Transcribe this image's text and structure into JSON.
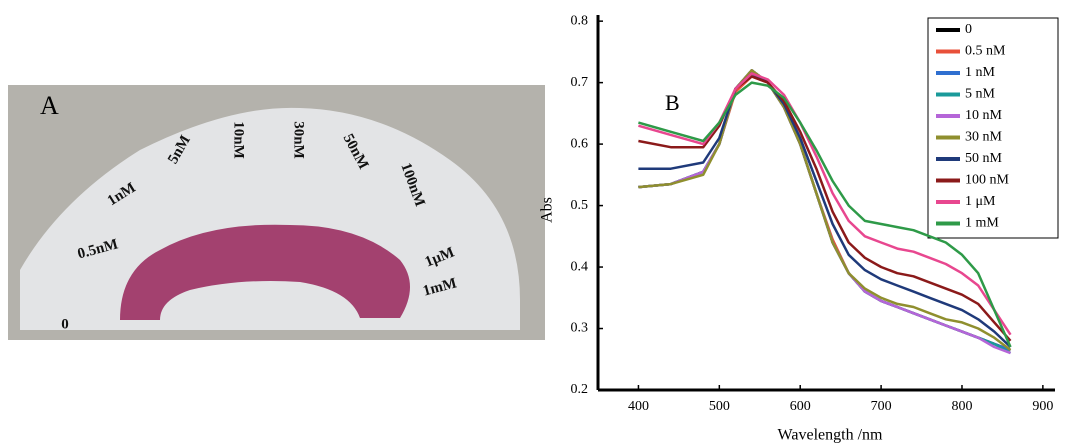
{
  "photo": {
    "label": "A",
    "tube_labels": [
      "0",
      "0.5nM",
      "1nM",
      "5nM",
      "10nM",
      "30nM",
      "50nM",
      "100nM",
      "1μM",
      "1mM"
    ]
  },
  "chart_data": {
    "type": "line",
    "panel_label": "B",
    "x_label": "Wavelength /nm",
    "y_label": "Abs",
    "x": [
      400,
      440,
      480,
      500,
      520,
      540,
      560,
      580,
      600,
      620,
      640,
      660,
      680,
      700,
      720,
      740,
      760,
      780,
      800,
      820,
      840,
      860
    ],
    "series": [
      {
        "name": "0",
        "color": "#000000",
        "values": [
          0.53,
          0.535,
          0.555,
          0.6,
          0.69,
          0.72,
          0.7,
          0.66,
          0.6,
          0.52,
          0.44,
          0.39,
          0.36,
          0.345,
          0.335,
          0.325,
          0.315,
          0.305,
          0.295,
          0.285,
          0.275,
          0.265
        ]
      },
      {
        "name": "0.5 nM",
        "color": "#e8503a",
        "values": [
          0.53,
          0.535,
          0.555,
          0.6,
          0.685,
          0.71,
          0.7,
          0.66,
          0.6,
          0.52,
          0.445,
          0.39,
          0.36,
          0.345,
          0.335,
          0.325,
          0.315,
          0.305,
          0.295,
          0.285,
          0.275,
          0.265
        ]
      },
      {
        "name": "1 nM",
        "color": "#2f6fd0",
        "values": [
          0.53,
          0.535,
          0.555,
          0.6,
          0.69,
          0.715,
          0.7,
          0.66,
          0.6,
          0.52,
          0.44,
          0.39,
          0.36,
          0.345,
          0.335,
          0.325,
          0.315,
          0.305,
          0.295,
          0.285,
          0.275,
          0.265
        ]
      },
      {
        "name": "5 nM",
        "color": "#1a9a9a",
        "values": [
          0.53,
          0.535,
          0.555,
          0.6,
          0.69,
          0.72,
          0.7,
          0.66,
          0.6,
          0.52,
          0.44,
          0.39,
          0.36,
          0.345,
          0.335,
          0.325,
          0.315,
          0.305,
          0.295,
          0.285,
          0.275,
          0.26
        ]
      },
      {
        "name": "10 nM",
        "color": "#b565d8",
        "values": [
          0.53,
          0.535,
          0.555,
          0.6,
          0.69,
          0.72,
          0.7,
          0.66,
          0.6,
          0.52,
          0.44,
          0.39,
          0.36,
          0.345,
          0.335,
          0.325,
          0.315,
          0.305,
          0.295,
          0.285,
          0.27,
          0.26
        ]
      },
      {
        "name": "30 nM",
        "color": "#8f8f2e",
        "values": [
          0.53,
          0.535,
          0.55,
          0.6,
          0.69,
          0.72,
          0.7,
          0.66,
          0.6,
          0.52,
          0.44,
          0.39,
          0.365,
          0.35,
          0.34,
          0.335,
          0.325,
          0.315,
          0.31,
          0.3,
          0.285,
          0.265
        ]
      },
      {
        "name": "50 nM",
        "color": "#1f3a7a",
        "values": [
          0.56,
          0.56,
          0.57,
          0.61,
          0.69,
          0.715,
          0.7,
          0.665,
          0.61,
          0.54,
          0.47,
          0.42,
          0.395,
          0.38,
          0.37,
          0.36,
          0.35,
          0.34,
          0.33,
          0.315,
          0.295,
          0.27
        ]
      },
      {
        "name": "100 nM",
        "color": "#8b1a1a",
        "values": [
          0.605,
          0.595,
          0.595,
          0.63,
          0.69,
          0.71,
          0.7,
          0.67,
          0.62,
          0.56,
          0.49,
          0.44,
          0.415,
          0.4,
          0.39,
          0.385,
          0.375,
          0.365,
          0.355,
          0.34,
          0.31,
          0.28
        ]
      },
      {
        "name": "1 μM",
        "color": "#e8478f",
        "values": [
          0.63,
          0.615,
          0.6,
          0.635,
          0.69,
          0.715,
          0.705,
          0.68,
          0.635,
          0.58,
          0.52,
          0.475,
          0.45,
          0.44,
          0.43,
          0.425,
          0.415,
          0.405,
          0.39,
          0.37,
          0.33,
          0.29
        ]
      },
      {
        "name": "1 mM",
        "color": "#2e9a48",
        "values": [
          0.635,
          0.62,
          0.605,
          0.635,
          0.68,
          0.7,
          0.695,
          0.675,
          0.635,
          0.59,
          0.54,
          0.5,
          0.475,
          0.47,
          0.465,
          0.46,
          0.45,
          0.44,
          0.42,
          0.39,
          0.33,
          0.27
        ]
      }
    ],
    "xlim": [
      350,
      915
    ],
    "ylim": [
      0.2,
      0.81
    ],
    "xticks": [
      400,
      500,
      600,
      700,
      800,
      900
    ],
    "yticks": [
      0.2,
      0.3,
      0.4,
      0.5,
      0.6,
      0.7,
      0.8
    ],
    "legend": "upper right"
  }
}
